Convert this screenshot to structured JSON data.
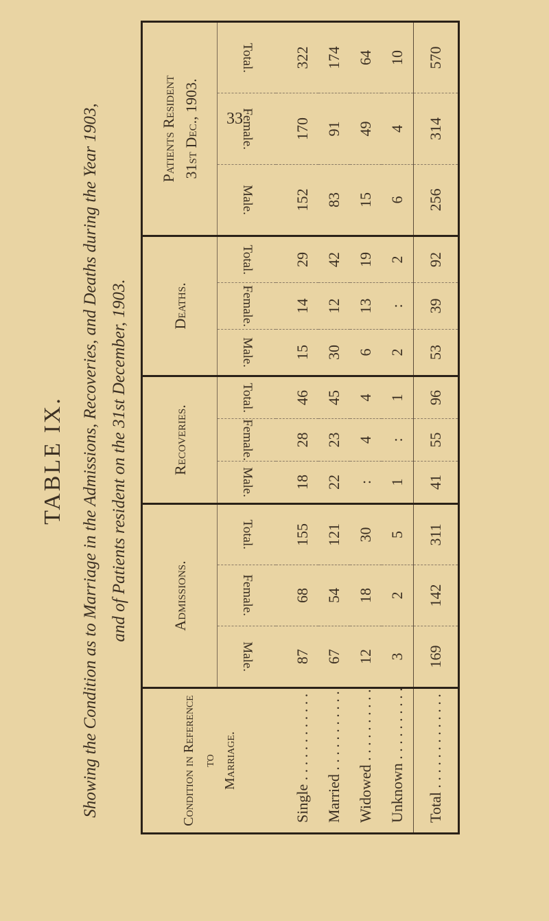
{
  "page_number": "33",
  "title": "TABLE IX.",
  "subtitle_line1": "Showing the Condition as to Marriage in the Admissions, Recoveries, and Deaths during the Year 1903,",
  "subtitle_line2": "and of Patients resident on the 31st December, 1903.",
  "table": {
    "condition_header_line1": "Condition in Reference to",
    "condition_header_line2": "Marriage.",
    "groups": [
      {
        "label": "Admissions."
      },
      {
        "label": "Recoveries."
      },
      {
        "label": "Deaths."
      },
      {
        "label_line1": "Patients Resident",
        "label_line2": "31st Dec., 1903."
      }
    ],
    "sub_headers": [
      "Male.",
      "Female.",
      "Total."
    ],
    "rows": [
      {
        "label": "Single",
        "values": [
          "87",
          "68",
          "155",
          "18",
          "28",
          "46",
          "15",
          "14",
          "29",
          "152",
          "170",
          "322"
        ]
      },
      {
        "label": "Married",
        "values": [
          "67",
          "54",
          "121",
          "22",
          "23",
          "45",
          "30",
          "12",
          "42",
          "83",
          "91",
          "174"
        ]
      },
      {
        "label": "Widowed",
        "values": [
          "12",
          "18",
          "30",
          ":",
          "4",
          "4",
          "6",
          "13",
          "19",
          "15",
          "49",
          "64"
        ]
      },
      {
        "label": "Unknown",
        "values": [
          "3",
          "2",
          "5",
          "1",
          ":",
          "1",
          "2",
          ":",
          "2",
          "6",
          "4",
          "10"
        ]
      }
    ],
    "total": {
      "label": "Total",
      "values": [
        "169",
        "142",
        "311",
        "41",
        "55",
        "96",
        "53",
        "39",
        "92",
        "256",
        "314",
        "570"
      ]
    }
  }
}
